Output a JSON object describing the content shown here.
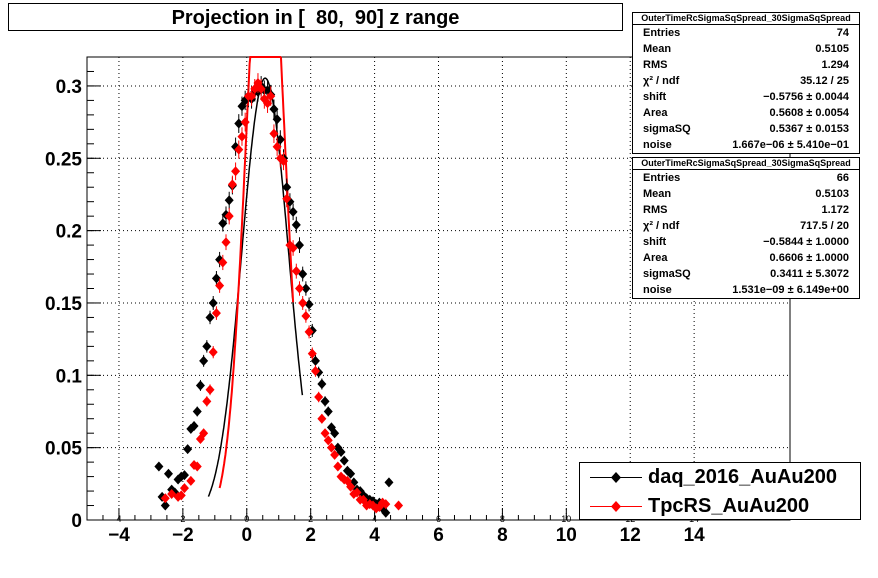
{
  "title": "Projection in [  80,  90] z range",
  "chart_data": {
    "type": "scatter",
    "xlim": [
      -5,
      17
    ],
    "ylim": [
      0,
      0.32
    ],
    "grid": true,
    "x_ticks": [
      "−4",
      "−2",
      "0",
      "2",
      "4",
      "6",
      "8",
      "10",
      "12",
      "14"
    ],
    "x_tick_values": [
      -4,
      -2,
      0,
      2,
      4,
      6,
      8,
      10,
      12,
      14
    ],
    "x_minor_ticks": [
      "4",
      "2",
      "0",
      "2",
      "4",
      "6",
      "8",
      "10",
      "12",
      "14"
    ],
    "y_ticks": [
      "0",
      "0.05",
      "0.1",
      "0.15",
      "0.2",
      "0.25",
      "0.3"
    ],
    "y_tick_values": [
      0,
      0.05,
      0.1,
      0.15,
      0.2,
      0.25,
      0.3
    ],
    "series": [
      {
        "name": "daq_2016_AuAu200",
        "color": "#000000",
        "x": [
          -2.75,
          -2.65,
          -2.55,
          -2.45,
          -2.35,
          -2.25,
          -2.15,
          -2.05,
          -1.95,
          -1.85,
          -1.75,
          -1.65,
          -1.55,
          -1.45,
          -1.35,
          -1.25,
          -1.15,
          -1.05,
          -0.95,
          -0.85,
          -0.75,
          -0.65,
          -0.55,
          -0.45,
          -0.35,
          -0.25,
          -0.15,
          -0.05,
          0.05,
          0.15,
          0.25,
          0.35,
          0.45,
          0.55,
          0.65,
          0.75,
          0.85,
          0.95,
          1.05,
          1.15,
          1.25,
          1.35,
          1.45,
          1.55,
          1.65,
          1.75,
          1.85,
          1.95,
          2.05,
          2.15,
          2.25,
          2.35,
          2.45,
          2.55,
          2.65,
          2.75,
          2.85,
          2.95,
          3.05,
          3.15,
          3.25,
          3.35,
          3.45,
          3.55,
          3.65,
          3.75,
          3.85,
          3.95,
          4.05,
          4.15,
          4.25,
          4.35,
          4.45
        ],
        "y": [
          0.037,
          0.016,
          0.01,
          0.032,
          0.021,
          0.019,
          0.028,
          0.03,
          0.031,
          0.049,
          0.063,
          0.065,
          0.075,
          0.093,
          0.11,
          0.12,
          0.14,
          0.15,
          0.167,
          0.18,
          0.205,
          0.211,
          0.221,
          0.231,
          0.258,
          0.274,
          0.286,
          0.29,
          0.292,
          0.291,
          0.296,
          0.296,
          0.3,
          0.297,
          0.297,
          0.294,
          0.284,
          0.277,
          0.263,
          0.25,
          0.23,
          0.22,
          0.213,
          0.204,
          0.19,
          0.17,
          0.16,
          0.149,
          0.131,
          0.11,
          0.102,
          0.094,
          0.082,
          0.075,
          0.064,
          0.06,
          0.05,
          0.047,
          0.041,
          0.034,
          0.032,
          0.026,
          0.021,
          0.02,
          0.017,
          0.015,
          0.014,
          0.013,
          0.011,
          0.012,
          0.008,
          0.005,
          0.026
        ]
      },
      {
        "name": "TpcRS_AuAu200",
        "color": "#ff0000",
        "x": [
          -2.55,
          -2.35,
          -2.15,
          -2.05,
          -1.95,
          -1.75,
          -1.65,
          -1.55,
          -1.45,
          -1.35,
          -1.25,
          -1.15,
          -1.05,
          -0.95,
          -0.85,
          -0.75,
          -0.65,
          -0.55,
          -0.45,
          -0.35,
          -0.25,
          -0.15,
          -0.05,
          0.05,
          0.15,
          0.25,
          0.35,
          0.45,
          0.55,
          0.65,
          0.75,
          0.85,
          0.95,
          1.05,
          1.15,
          1.25,
          1.35,
          1.45,
          1.55,
          1.65,
          1.75,
          1.85,
          1.95,
          2.05,
          2.15,
          2.25,
          2.35,
          2.45,
          2.55,
          2.65,
          2.75,
          2.85,
          2.95,
          3.05,
          3.15,
          3.25,
          3.35,
          3.45,
          3.55,
          3.65,
          3.75,
          3.85,
          3.95,
          4.05,
          4.15,
          4.25,
          4.35,
          4.75
        ],
        "y": [
          0.015,
          0.018,
          0.016,
          0.017,
          0.022,
          0.027,
          0.038,
          0.037,
          0.056,
          0.06,
          0.082,
          0.09,
          0.116,
          0.143,
          0.162,
          0.178,
          0.192,
          0.21,
          0.232,
          0.241,
          0.256,
          0.265,
          0.275,
          0.293,
          0.293,
          0.298,
          0.302,
          0.298,
          0.291,
          0.288,
          0.293,
          0.267,
          0.258,
          0.25,
          0.248,
          0.222,
          0.19,
          0.188,
          0.172,
          0.16,
          0.15,
          0.141,
          0.13,
          0.115,
          0.103,
          0.085,
          0.07,
          0.06,
          0.055,
          0.05,
          0.045,
          0.037,
          0.03,
          0.028,
          0.027,
          0.023,
          0.018,
          0.019,
          0.014,
          0.014,
          0.01,
          0.011,
          0.01,
          0.008,
          0.009,
          0.012,
          0.011,
          0.01
        ]
      }
    ],
    "fits": [
      {
        "color": "#000000",
        "x_range": [
          -1.2,
          1.75
        ],
        "shift": -0.5756,
        "area": 0.5608,
        "sigmaSQ": 0.5367
      },
      {
        "color": "#ff0000",
        "x_range": [
          -0.85,
          1.45
        ],
        "shift": -0.5844,
        "area": 0.6606,
        "sigmaSQ": 0.3411
      }
    ]
  },
  "stats": [
    {
      "title": "OuterTimeRcSigmaSqSpread_30SigmaSqSpread",
      "rows": [
        {
          "label": "Entries",
          "value": "74"
        },
        {
          "label": "Mean",
          "value": "0.5105"
        },
        {
          "label": "RMS",
          "value": "1.294"
        },
        {
          "label": "χ² / ndf",
          "value": "35.12 / 25"
        },
        {
          "label": "shift",
          "value": "−0.5756 ± 0.0044"
        },
        {
          "label": "Area",
          "value": "0.5608 ± 0.0054"
        },
        {
          "label": "sigmaSQ",
          "value": "0.5367 ± 0.0153"
        },
        {
          "label": "noise",
          "value": "1.667e−06 ± 5.410e−01"
        }
      ]
    },
    {
      "title": "OuterTimeRcSigmaSqSpread_30SigmaSqSpread",
      "rows": [
        {
          "label": "Entries",
          "value": "66"
        },
        {
          "label": "Mean",
          "value": "0.5103"
        },
        {
          "label": "RMS",
          "value": "1.172"
        },
        {
          "label": "χ² / ndf",
          "value": "717.5 / 20"
        },
        {
          "label": "shift",
          "value": "−0.5844 ± 1.0000"
        },
        {
          "label": "Area",
          "value": "0.6606 ± 1.0000"
        },
        {
          "label": "sigmaSQ",
          "value": "0.3411 ± 5.3072"
        },
        {
          "label": "noise",
          "value": "1.531e−09 ± 6.149e+00"
        }
      ]
    }
  ],
  "legend": [
    {
      "label": "daq_2016_AuAu200",
      "color": "#000000"
    },
    {
      "label": "TpcRS_AuAu200",
      "color": "#ff0000"
    }
  ]
}
